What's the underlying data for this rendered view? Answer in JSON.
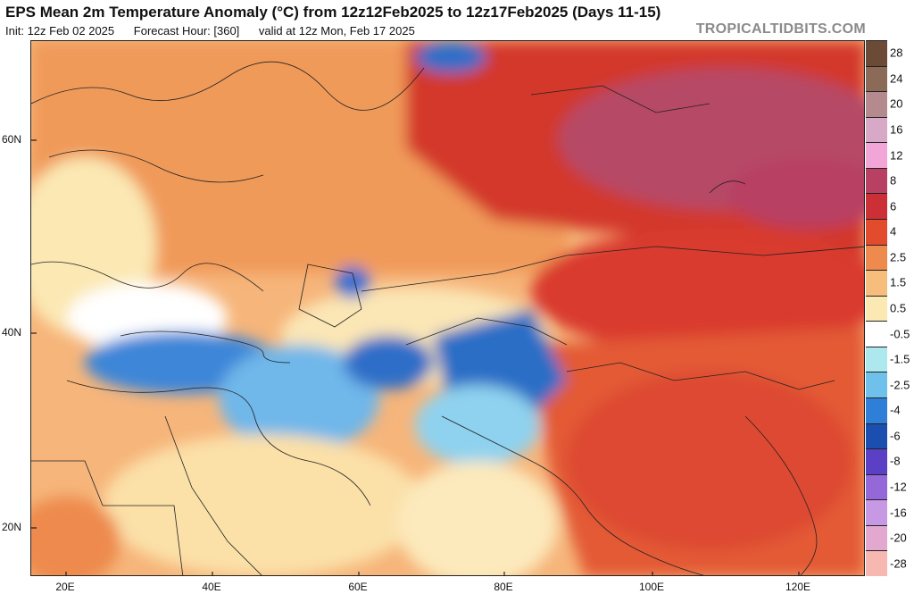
{
  "title": "EPS Mean 2m Temperature Anomaly (°C) from 12z12Feb2025 to 12z17Feb2025 (Days 11-15)",
  "subtitle": {
    "init": "Init: 12z Feb 02 2025",
    "forecast_hour": "Forecast Hour: [360]",
    "valid": "valid at 12z Mon, Feb 17 2025"
  },
  "brand": "TROPICALTIDBITS.COM",
  "map": {
    "lat_labels": [
      "60N",
      "40N",
      "20N"
    ],
    "lon_labels": [
      "20E",
      "40E",
      "60E",
      "80E",
      "100E",
      "120E"
    ]
  },
  "legend": {
    "labels": [
      "28",
      "24",
      "20",
      "16",
      "12",
      "8",
      "6",
      "4",
      "2.5",
      "1.5",
      "0.5",
      "-0.5",
      "-1.5",
      "-2.5",
      "-4",
      "-6",
      "-8",
      "-12",
      "-16",
      "-20",
      "-28"
    ],
    "colors": [
      "#6b4a36",
      "#8b6a58",
      "#b58a8f",
      "#d8a9c7",
      "#f2a6d7",
      "#b84163",
      "#cc2f35",
      "#e24b2b",
      "#ee8a4d",
      "#f7bd7d",
      "#fbe8b3",
      "#ffffff",
      "#aee8ef",
      "#6fc0ea",
      "#2f7fd8",
      "#1a4fb0",
      "#5b3fc4",
      "#9468d8",
      "#c798e3",
      "#e2a8cf",
      "#f6b8b0"
    ]
  }
}
